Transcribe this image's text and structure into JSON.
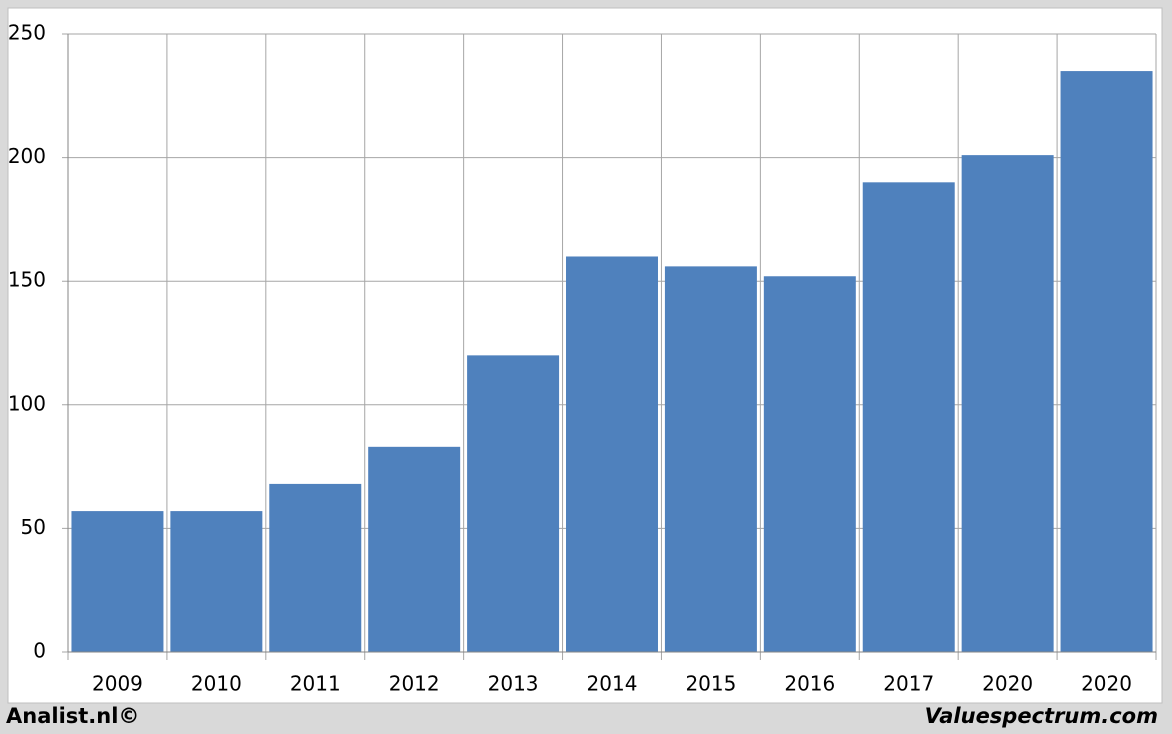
{
  "chart_data": {
    "type": "bar",
    "categories": [
      "2009",
      "2010",
      "2011",
      "2012",
      "2013",
      "2014",
      "2015",
      "2016",
      "2017",
      "2020",
      "2020"
    ],
    "values": [
      57,
      57,
      68,
      83,
      120,
      160,
      156,
      152,
      190,
      201,
      235
    ],
    "color": "#4f81bd",
    "ylim": [
      0,
      250
    ],
    "yticks": [
      0,
      50,
      100,
      150,
      200,
      250
    ],
    "grid": true,
    "annotations": [
      "Analist.nl©",
      "Valuespectrum.com"
    ]
  }
}
